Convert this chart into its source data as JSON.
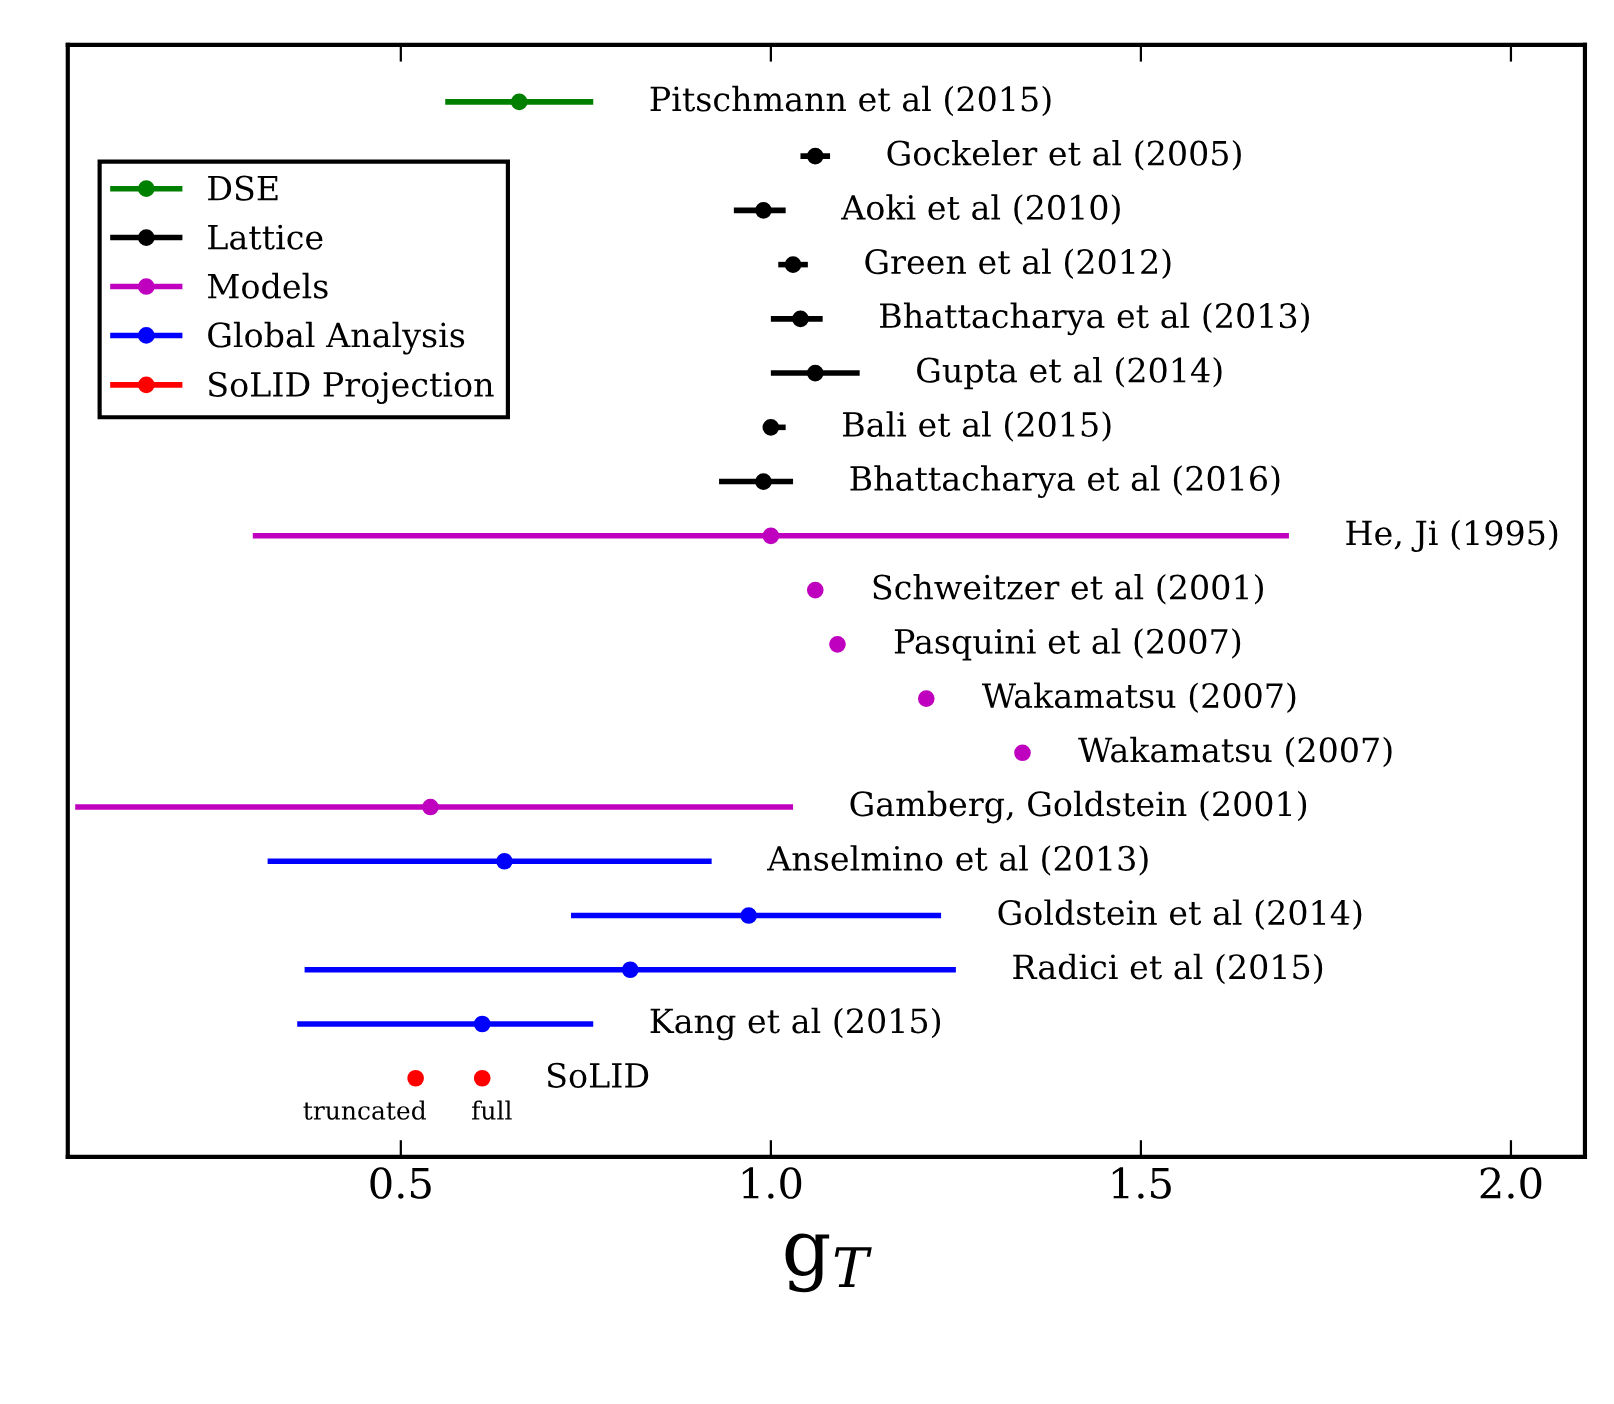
{
  "chart_data": {
    "type": "scatter",
    "orientation": "horizontal",
    "xlabel": "g$_{T}$",
    "categories": [
      "Pitschmann et al (2015)",
      "Gockeler et al (2005)",
      "Aoki et al (2010)",
      "Green et al (2012)",
      "Bhattacharya et al (2013)",
      "Gupta et al (2014)",
      "Bali et al (2015)",
      "Bhattacharya et al (2016)",
      "He, Ji (1995)",
      "Schweitzer et al (2001)",
      "Pasquini et al (2007)",
      "Wakamatsu (2007)",
      "Wakamatsu (2007)",
      "Gamberg, Goldstein (2001)",
      "Anselmino et al (2013)",
      "Goldstein et al (2014)",
      "Radici et al (2015)",
      "Kang et al (2015)",
      "SoLID"
    ],
    "series": [
      {
        "name": "DSE",
        "color": "#008000",
        "values": [
          0.66,
          null,
          null,
          null,
          null,
          null,
          null,
          null,
          null,
          null,
          null,
          null,
          null,
          null,
          null,
          null,
          null,
          null,
          null
        ],
        "errors": [
          [
            0.56,
            0.76
          ],
          null,
          null,
          null,
          null,
          null,
          null,
          null,
          null,
          null,
          null,
          null,
          null,
          null,
          null,
          null,
          null,
          null,
          null
        ]
      },
      {
        "name": "Lattice",
        "color": "#000000",
        "values": [
          null,
          1.06,
          0.99,
          1.03,
          1.04,
          1.06,
          1.0,
          0.99,
          null,
          null,
          null,
          null,
          null,
          null,
          null,
          null,
          null,
          null,
          null
        ],
        "errors": [
          null,
          [
            1.04,
            1.08
          ],
          [
            0.95,
            1.02
          ],
          [
            1.01,
            1.05
          ],
          [
            1.0,
            1.07
          ],
          [
            1.0,
            1.12
          ],
          [
            0.99,
            1.02
          ],
          [
            0.93,
            1.03
          ],
          null,
          null,
          null,
          null,
          null,
          null,
          null,
          null,
          null,
          null,
          null
        ]
      },
      {
        "name": "Models",
        "color": "#bf00bf",
        "values": [
          null,
          null,
          null,
          null,
          null,
          null,
          null,
          null,
          1.0,
          1.06,
          1.09,
          1.21,
          1.34,
          0.54,
          null,
          null,
          null,
          null,
          null
        ],
        "errors": [
          null,
          null,
          null,
          null,
          null,
          null,
          null,
          null,
          [
            0.3,
            1.7
          ],
          null,
          null,
          null,
          null,
          [
            0.06,
            1.03
          ],
          null,
          null,
          null,
          null,
          null
        ]
      },
      {
        "name": "Global Analysis",
        "color": "#0000ff",
        "values": [
          null,
          null,
          null,
          null,
          null,
          null,
          null,
          null,
          null,
          null,
          null,
          null,
          null,
          null,
          0.64,
          0.97,
          0.81,
          0.61,
          null
        ],
        "errors": [
          null,
          null,
          null,
          null,
          null,
          null,
          null,
          null,
          null,
          null,
          null,
          null,
          null,
          null,
          [
            0.32,
            0.92
          ],
          [
            0.73,
            1.23
          ],
          [
            0.37,
            1.25
          ],
          [
            0.36,
            0.76
          ],
          null
        ]
      },
      {
        "name": "SoLID Projection",
        "color": "#ff0000",
        "values": [
          null,
          null,
          null,
          null,
          null,
          null,
          null,
          null,
          null,
          null,
          null,
          null,
          null,
          null,
          null,
          null,
          null,
          null,
          0.61
        ],
        "errors": [
          null,
          null,
          null,
          null,
          null,
          null,
          null,
          null,
          null,
          null,
          null,
          null,
          null,
          null,
          null,
          null,
          null,
          null,
          [
            0.6,
            0.62
          ]
        ]
      },
      {
        "color": "#ff0000",
        "values": [
          null,
          null,
          null,
          null,
          null,
          null,
          null,
          null,
          null,
          null,
          null,
          null,
          null,
          null,
          null,
          null,
          null,
          null,
          0.52
        ],
        "errors": [
          null,
          null,
          null,
          null,
          null,
          null,
          null,
          null,
          null,
          null,
          null,
          null,
          null,
          null,
          null,
          null,
          null,
          null,
          [
            0.51,
            0.53
          ]
        ]
      }
    ],
    "annotations": [
      {
        "text": "truncated",
        "x": 0.52,
        "y": "SoLID"
      },
      {
        "text": "full",
        "x": 0.61,
        "y": "SoLID"
      }
    ],
    "xlim": [
      0.05,
      2.1
    ],
    "xticks": [
      {
        "value": 0.5,
        "label": "0.5"
      },
      {
        "value": 1.0,
        "label": "1.0"
      },
      {
        "value": 1.5,
        "label": "1.5"
      },
      {
        "value": 2.0,
        "label": "2.0"
      }
    ],
    "tick_labels": "x",
    "grid": false,
    "legend": "top left",
    "marker": "circle"
  }
}
